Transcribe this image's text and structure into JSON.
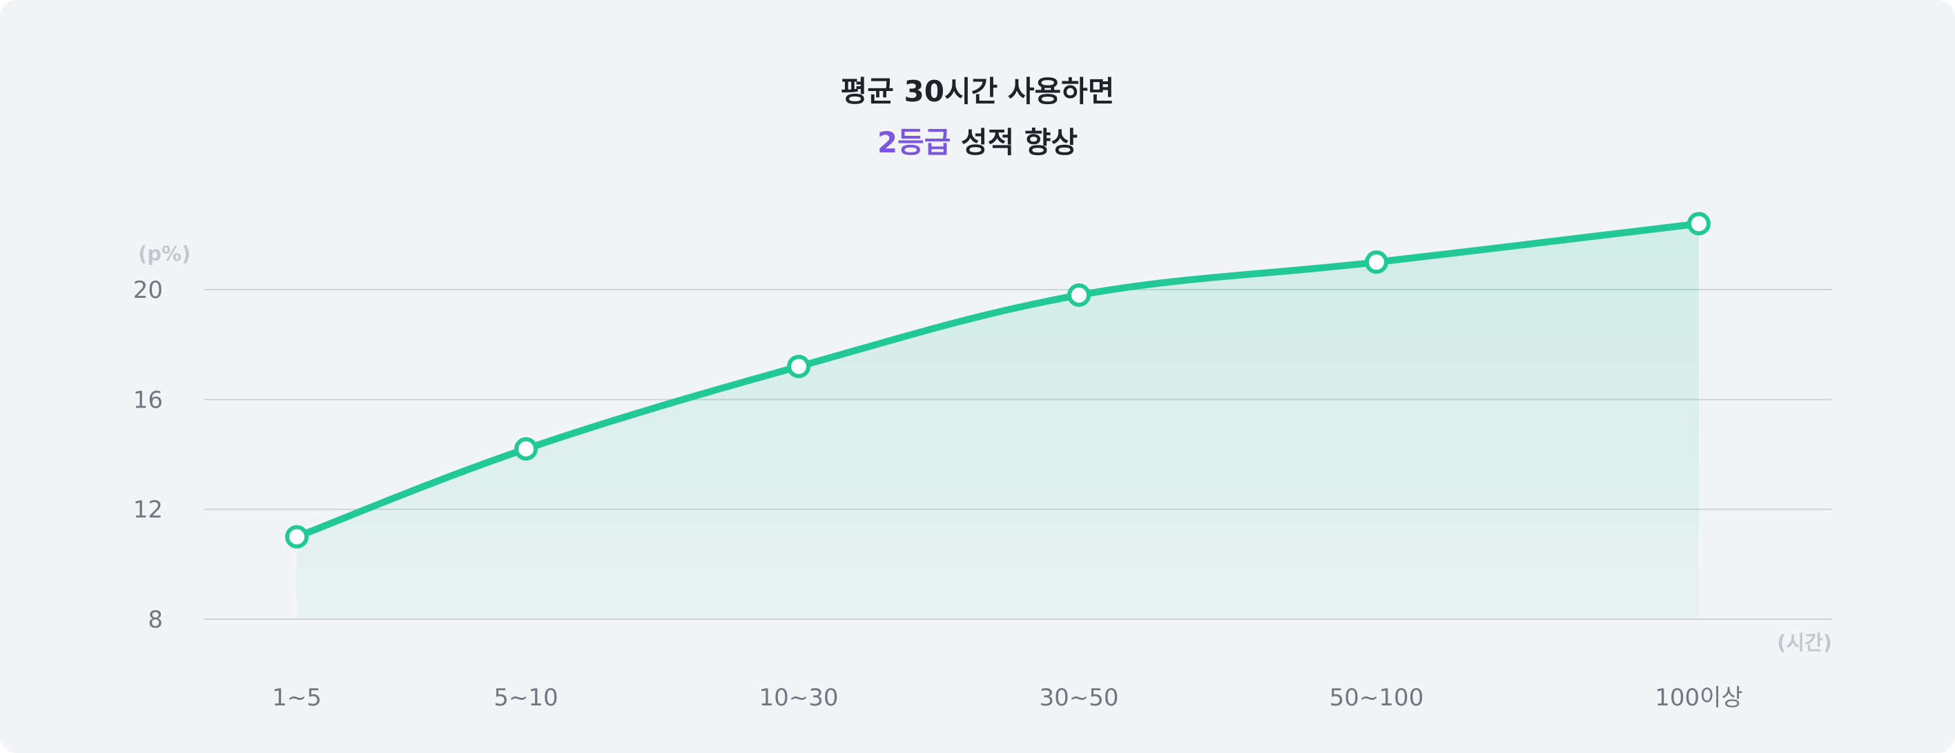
{
  "headline": {
    "line1": "평균 30시간 사용하면",
    "line2_accent": "2등급",
    "line2_rest": " 성적 향상"
  },
  "colors": {
    "background": "#f3f4f6",
    "line": "#22c997",
    "accent": "#7b57e0",
    "grid": "#cfd3d8"
  },
  "chart_data": {
    "type": "area",
    "y_unit_label": "(p%)",
    "x_unit_label": "(시간)",
    "categories": [
      "1~5",
      "5~10",
      "10~30",
      "30~50",
      "50~100",
      "100이상"
    ],
    "values": [
      11,
      14.2,
      17.2,
      19.8,
      21,
      22.4
    ],
    "yticks": [
      8,
      12,
      16,
      20
    ],
    "ylim": [
      8,
      22.4
    ],
    "grid": true,
    "marker": "hollow-circle"
  }
}
